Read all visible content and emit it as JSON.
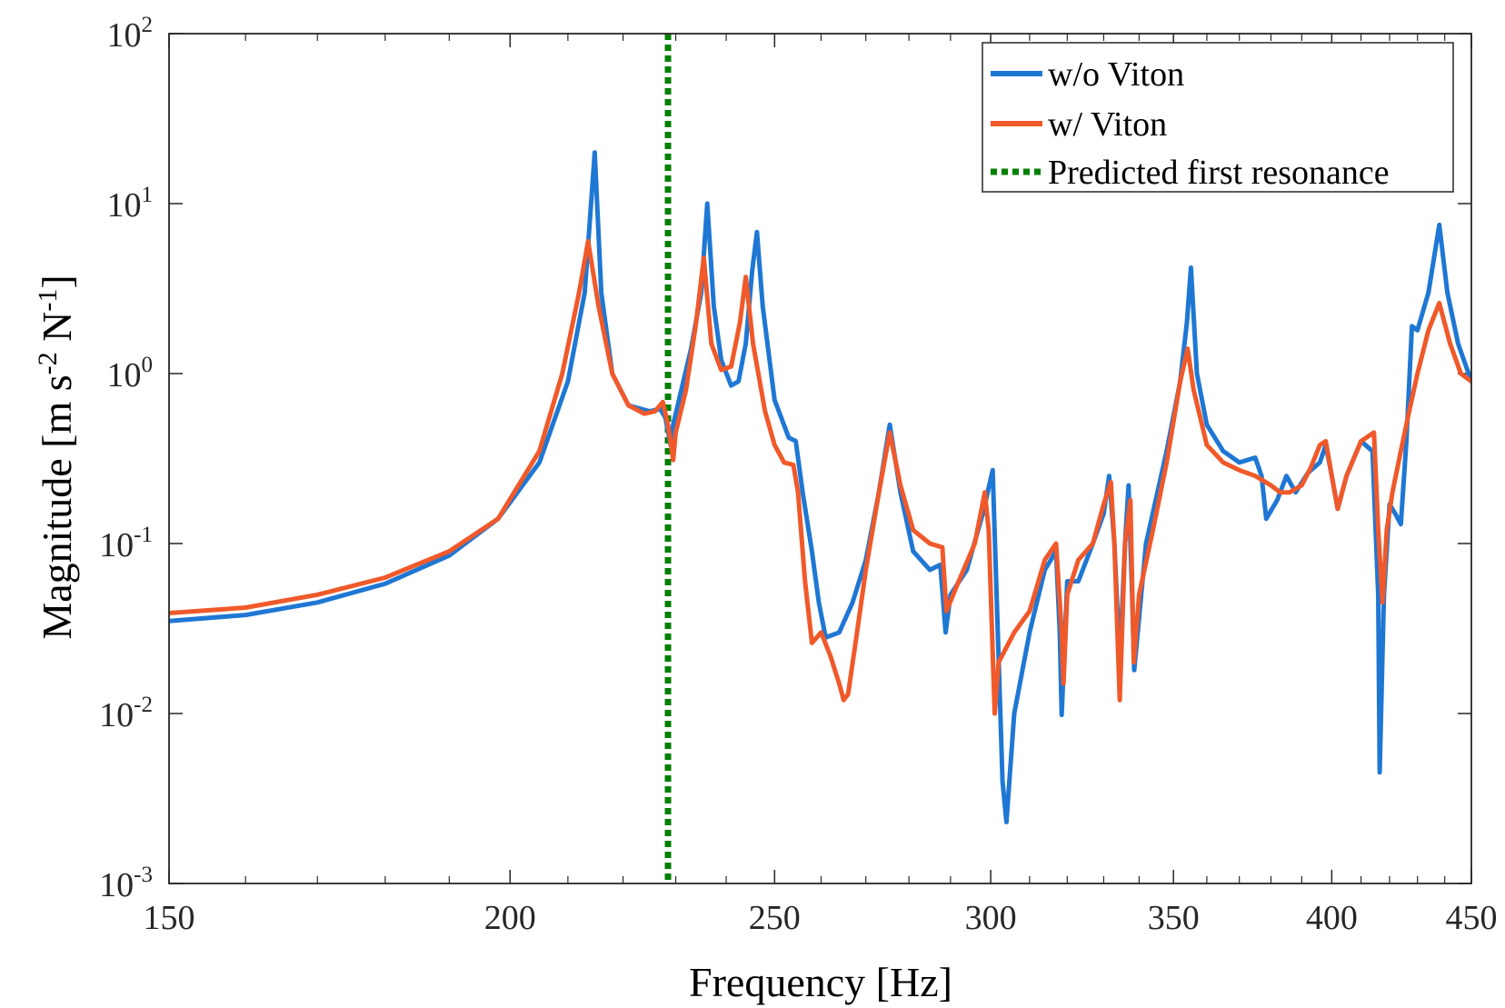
{
  "colors": {
    "without_viton": "#1f77d4",
    "with_viton": "#f0592a",
    "predicted": "#008000",
    "axis": "#262626"
  },
  "chart_data": {
    "type": "line",
    "title": "",
    "xlabel": "Frequency [Hz]",
    "ylabel_parts": {
      "main": "Magnitude  [m s",
      "exp1": "-2",
      "mid": " N",
      "exp2": "-1",
      "end": "]"
    },
    "xscale": "log",
    "yscale": "log",
    "xlim": [
      150,
      450
    ],
    "ylim": [
      0.001,
      100
    ],
    "x_ticks": [
      150,
      200,
      250,
      300,
      350,
      400,
      450
    ],
    "x_tick_labels": [
      "150",
      "200",
      "250",
      "300",
      "350",
      "400",
      "450"
    ],
    "y_ticks": [
      {
        "value": 100,
        "base": "10",
        "exp": "2"
      },
      {
        "value": 10,
        "base": "10",
        "exp": "1"
      },
      {
        "value": 1,
        "base": "10",
        "exp": "0"
      },
      {
        "value": 0.1,
        "base": "10",
        "exp": "-1"
      },
      {
        "value": 0.01,
        "base": "10",
        "exp": "-2"
      },
      {
        "value": 0.001,
        "base": "10",
        "exp": "-3"
      }
    ],
    "legend_position": "top-right",
    "series": [
      {
        "name": "w/o Viton",
        "color": "#1f77d4",
        "points": [
          [
            150,
            0.035
          ],
          [
            160,
            0.038
          ],
          [
            170,
            0.045
          ],
          [
            180,
            0.058
          ],
          [
            190,
            0.085
          ],
          [
            198,
            0.14
          ],
          [
            205,
            0.3
          ],
          [
            210,
            0.9
          ],
          [
            213,
            3.0
          ],
          [
            214.8,
            20
          ],
          [
            216,
            3.0
          ],
          [
            218,
            1.0
          ],
          [
            221,
            0.65
          ],
          [
            225,
            0.6
          ],
          [
            227,
            0.62
          ],
          [
            228,
            0.55
          ],
          [
            229,
            0.38
          ],
          [
            229.5,
            0.5
          ],
          [
            233,
            1.4
          ],
          [
            235,
            3.0
          ],
          [
            236.2,
            10.0
          ],
          [
            237.5,
            2.5
          ],
          [
            239,
            1.2
          ],
          [
            241,
            0.85
          ],
          [
            242.5,
            0.9
          ],
          [
            244,
            1.5
          ],
          [
            245.3,
            4.0
          ],
          [
            246.3,
            6.8
          ],
          [
            247.5,
            2.5
          ],
          [
            250,
            0.7
          ],
          [
            253,
            0.42
          ],
          [
            254.5,
            0.4
          ],
          [
            256,
            0.2
          ],
          [
            258,
            0.09
          ],
          [
            259.5,
            0.045
          ],
          [
            261,
            0.028
          ],
          [
            264,
            0.03
          ],
          [
            267,
            0.045
          ],
          [
            270,
            0.08
          ],
          [
            273,
            0.2
          ],
          [
            275.5,
            0.5
          ],
          [
            278,
            0.2
          ],
          [
            281,
            0.09
          ],
          [
            285,
            0.07
          ],
          [
            287.5,
            0.075
          ],
          [
            288.8,
            0.03
          ],
          [
            290,
            0.05
          ],
          [
            294,
            0.07
          ],
          [
            298,
            0.15
          ],
          [
            300.5,
            0.27
          ],
          [
            301.5,
            0.05
          ],
          [
            303,
            0.004
          ],
          [
            304,
            0.0023
          ],
          [
            306,
            0.01
          ],
          [
            310,
            0.03
          ],
          [
            314,
            0.07
          ],
          [
            317,
            0.09
          ],
          [
            318,
            0.03
          ],
          [
            318.5,
            0.0098
          ],
          [
            320,
            0.06
          ],
          [
            323,
            0.06
          ],
          [
            327,
            0.1
          ],
          [
            330,
            0.15
          ],
          [
            331.5,
            0.25
          ],
          [
            333,
            0.1
          ],
          [
            334.5,
            0.02
          ],
          [
            336,
            0.1
          ],
          [
            337,
            0.22
          ],
          [
            338,
            0.05
          ],
          [
            338.6,
            0.018
          ],
          [
            342,
            0.1
          ],
          [
            348,
            0.35
          ],
          [
            352,
            0.9
          ],
          [
            354,
            2.0
          ],
          [
            355.2,
            4.2
          ],
          [
            357,
            1.0
          ],
          [
            360,
            0.5
          ],
          [
            365,
            0.35
          ],
          [
            370,
            0.3
          ],
          [
            375,
            0.32
          ],
          [
            377,
            0.25
          ],
          [
            378.5,
            0.14
          ],
          [
            382,
            0.18
          ],
          [
            385,
            0.25
          ],
          [
            388,
            0.2
          ],
          [
            392,
            0.26
          ],
          [
            396,
            0.3
          ],
          [
            398,
            0.38
          ],
          [
            400,
            0.25
          ],
          [
            402,
            0.16
          ],
          [
            405,
            0.25
          ],
          [
            410,
            0.4
          ],
          [
            414,
            0.35
          ],
          [
            416,
            0.05
          ],
          [
            416.5,
            0.0045
          ],
          [
            418,
            0.05
          ],
          [
            420,
            0.17
          ],
          [
            422,
            0.15
          ],
          [
            424,
            0.13
          ],
          [
            426,
            0.4
          ],
          [
            428,
            1.9
          ],
          [
            430,
            1.8
          ],
          [
            434,
            3.0
          ],
          [
            438,
            7.5
          ],
          [
            441,
            3.0
          ],
          [
            445,
            1.5
          ],
          [
            450,
            0.9
          ]
        ]
      },
      {
        "name": "w/ Viton",
        "color": "#f0592a",
        "points": [
          [
            150,
            0.039
          ],
          [
            160,
            0.042
          ],
          [
            170,
            0.05
          ],
          [
            180,
            0.063
          ],
          [
            190,
            0.09
          ],
          [
            198,
            0.14
          ],
          [
            205,
            0.35
          ],
          [
            209,
            1.0
          ],
          [
            212,
            3.0
          ],
          [
            213.6,
            6.0
          ],
          [
            215.5,
            2.5
          ],
          [
            218,
            1.0
          ],
          [
            221,
            0.65
          ],
          [
            224,
            0.58
          ],
          [
            226,
            0.6
          ],
          [
            227.5,
            0.68
          ],
          [
            228.5,
            0.5
          ],
          [
            229.5,
            0.31
          ],
          [
            230,
            0.45
          ],
          [
            232,
            0.8
          ],
          [
            234,
            2.0
          ],
          [
            235.5,
            4.8
          ],
          [
            237,
            1.5
          ],
          [
            239,
            1.05
          ],
          [
            241,
            1.1
          ],
          [
            242.8,
            2.0
          ],
          [
            244,
            3.7
          ],
          [
            245.5,
            1.5
          ],
          [
            248,
            0.6
          ],
          [
            250,
            0.38
          ],
          [
            252,
            0.3
          ],
          [
            254,
            0.29
          ],
          [
            255,
            0.2
          ],
          [
            256.5,
            0.06
          ],
          [
            258,
            0.026
          ],
          [
            260,
            0.03
          ],
          [
            262,
            0.022
          ],
          [
            264,
            0.015
          ],
          [
            265,
            0.012
          ],
          [
            266,
            0.013
          ],
          [
            268,
            0.03
          ],
          [
            270,
            0.07
          ],
          [
            273,
            0.2
          ],
          [
            275.5,
            0.45
          ],
          [
            278,
            0.22
          ],
          [
            281,
            0.12
          ],
          [
            285,
            0.1
          ],
          [
            288,
            0.095
          ],
          [
            289,
            0.04
          ],
          [
            292,
            0.06
          ],
          [
            296,
            0.1
          ],
          [
            298.5,
            0.2
          ],
          [
            299.5,
            0.12
          ],
          [
            301,
            0.01
          ],
          [
            302,
            0.02
          ],
          [
            306,
            0.03
          ],
          [
            310,
            0.04
          ],
          [
            314,
            0.08
          ],
          [
            317,
            0.1
          ],
          [
            318.5,
            0.03
          ],
          [
            319,
            0.015
          ],
          [
            320,
            0.05
          ],
          [
            323,
            0.08
          ],
          [
            327,
            0.1
          ],
          [
            330,
            0.17
          ],
          [
            332,
            0.23
          ],
          [
            333,
            0.1
          ],
          [
            334.5,
            0.012
          ],
          [
            336,
            0.1
          ],
          [
            337.5,
            0.18
          ],
          [
            338.5,
            0.02
          ],
          [
            340,
            0.05
          ],
          [
            344,
            0.12
          ],
          [
            348,
            0.3
          ],
          [
            352,
            0.9
          ],
          [
            354.2,
            1.4
          ],
          [
            356,
            0.8
          ],
          [
            360,
            0.38
          ],
          [
            365,
            0.3
          ],
          [
            370,
            0.27
          ],
          [
            375,
            0.25
          ],
          [
            380,
            0.22
          ],
          [
            383,
            0.2
          ],
          [
            386,
            0.2
          ],
          [
            390,
            0.22
          ],
          [
            393,
            0.28
          ],
          [
            396,
            0.38
          ],
          [
            398,
            0.4
          ],
          [
            400,
            0.25
          ],
          [
            402,
            0.16
          ],
          [
            405,
            0.25
          ],
          [
            410,
            0.4
          ],
          [
            414.5,
            0.45
          ],
          [
            416,
            0.12
          ],
          [
            417.5,
            0.045
          ],
          [
            419,
            0.12
          ],
          [
            421,
            0.2
          ],
          [
            424,
            0.35
          ],
          [
            427,
            0.6
          ],
          [
            430,
            1.0
          ],
          [
            434,
            1.8
          ],
          [
            438,
            2.6
          ],
          [
            442,
            1.5
          ],
          [
            446,
            1.0
          ],
          [
            450,
            0.9
          ]
        ]
      },
      {
        "name": "Predicted first resonance",
        "color": "#008000",
        "style": "dotted",
        "x": 228.5
      }
    ]
  }
}
